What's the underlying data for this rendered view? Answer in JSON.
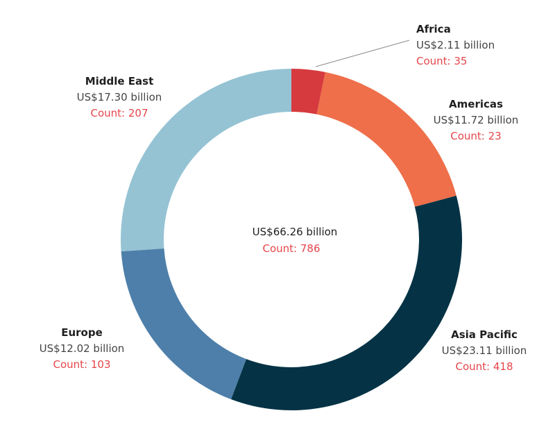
{
  "chart_data": {
    "type": "pie",
    "style": "donut",
    "segments": [
      {
        "name": "Africa",
        "amount_label": "US$2.11 billion",
        "count_label": "Count: 35",
        "value": 2.11,
        "count": 35,
        "color": "#d63a3e"
      },
      {
        "name": "Americas",
        "amount_label": "US$11.72 billion",
        "count_label": "Count: 23",
        "value": 11.72,
        "count": 23,
        "color": "#ee6f4a"
      },
      {
        "name": "Asia Pacific",
        "amount_label": "US$23.11 billion",
        "count_label": "Count: 418",
        "value": 23.11,
        "count": 418,
        "color": "#053345"
      },
      {
        "name": "Europe",
        "amount_label": "US$12.02 billion",
        "count_label": "Count: 103",
        "value": 12.02,
        "count": 103,
        "color": "#4e7faa"
      },
      {
        "name": "Middle East",
        "amount_label": "US$17.30 billion",
        "count_label": "Count: 207",
        "value": 17.3,
        "count": 207,
        "color": "#95c3d3"
      }
    ],
    "center": {
      "amount_label": "US$66.26 billion",
      "count_label": "Count: 786",
      "value": 66.26,
      "count": 786
    },
    "colors": {
      "count_text": "#e5454a",
      "leader_line": "#8c8c8c"
    }
  }
}
